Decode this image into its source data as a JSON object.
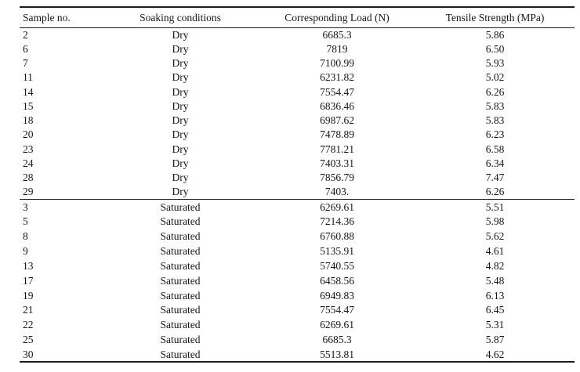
{
  "table": {
    "columns": [
      "Sample no.",
      "Soaking conditions",
      "Corresponding Load (N)",
      "Tensile Strength (MPa)"
    ],
    "sections": [
      {
        "name": "dry",
        "rows": [
          [
            "2",
            "Dry",
            "6685.3",
            "5.86"
          ],
          [
            "6",
            "Dry",
            "7819",
            "6.50"
          ],
          [
            "7",
            "Dry",
            "7100.99",
            "5.93"
          ],
          [
            "11",
            "Dry",
            "6231.82",
            "5.02"
          ],
          [
            "14",
            "Dry",
            "7554.47",
            "6.26"
          ],
          [
            "15",
            "Dry",
            "6836.46",
            "5.83"
          ],
          [
            "18",
            "Dry",
            "6987.62",
            "5.83"
          ],
          [
            "20",
            "Dry",
            "7478.89",
            "6.23"
          ],
          [
            "23",
            "Dry",
            "7781.21",
            "6.58"
          ],
          [
            "24",
            "Dry",
            "7403.31",
            "6.34"
          ],
          [
            "28",
            "Dry",
            "7856.79",
            "7.47"
          ],
          [
            "29",
            "Dry",
            "7403.",
            "6.26"
          ]
        ]
      },
      {
        "name": "saturated",
        "rows": [
          [
            "3",
            "Saturated",
            "6269.61",
            "5.51"
          ],
          [
            "5",
            "Saturated",
            "7214.36",
            "5.98"
          ],
          [
            "8",
            "Saturated",
            "6760.88",
            "5.62"
          ],
          [
            "9",
            "Saturated",
            "5135.91",
            "4.61"
          ],
          [
            "13",
            "Saturated",
            "5740.55",
            "4.82"
          ],
          [
            "17",
            "Saturated",
            "6458.56",
            "5.48"
          ],
          [
            "19",
            "Saturated",
            "6949.83",
            "6.13"
          ],
          [
            "21",
            "Saturated",
            "7554.47",
            "6.45"
          ],
          [
            "22",
            "Saturated",
            "6269.61",
            "5.31"
          ],
          [
            "25",
            "Saturated",
            "6685.3",
            "5.87"
          ],
          [
            "30",
            "Saturated",
            "5513.81",
            "4.62"
          ]
        ]
      }
    ]
  },
  "colors": {
    "text": "#161616",
    "rule": "#1c1c1c",
    "background": "#ffffff"
  }
}
